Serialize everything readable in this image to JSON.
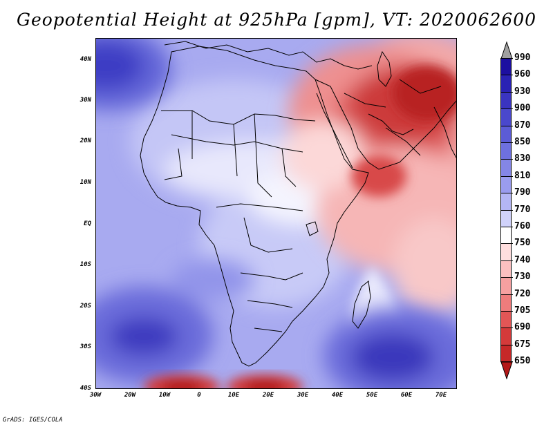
{
  "title": "Geopotential Height at 925hPa [gpm], VT: 2020062600",
  "footer": "GrADS: IGES/COLA",
  "axes": {
    "lat_labels": [
      "40N",
      "30N",
      "20N",
      "10N",
      "EQ",
      "10S",
      "20S",
      "30S",
      "40S"
    ],
    "lon_labels": [
      "30W",
      "20W",
      "10W",
      "0",
      "10E",
      "20E",
      "30E",
      "40E",
      "50E",
      "60E",
      "70E"
    ]
  },
  "colorbar": {
    "levels": [
      "990",
      "960",
      "930",
      "900",
      "870",
      "850",
      "830",
      "810",
      "790",
      "770",
      "760",
      "750",
      "740",
      "730",
      "720",
      "705",
      "690",
      "675",
      "650"
    ],
    "colors": [
      "#a0a0a0",
      "#1c0fa0",
      "#2a22b4",
      "#3a34c0",
      "#4a48cc",
      "#5c5cd6",
      "#6e70de",
      "#8486e6",
      "#9a9cee",
      "#b4b6f4",
      "#d0d2fa",
      "#ffffff",
      "#ffdede",
      "#fcc0c0",
      "#f6a0a0",
      "#ee7c7c",
      "#e25656",
      "#d43a3a",
      "#c62828",
      "#b41818"
    ]
  },
  "chart_data": {
    "type": "heatmap",
    "title": "Geopotential Height at 925hPa [gpm], VT: 2020062600",
    "variable": "Geopotential Height at 925hPa",
    "units": "gpm",
    "valid_time": "2020062600",
    "lon_range": [
      -30,
      75
    ],
    "lat_range": [
      -40,
      45
    ],
    "contour_levels": [
      650,
      675,
      690,
      705,
      720,
      730,
      740,
      750,
      760,
      770,
      790,
      810,
      830,
      850,
      870,
      900,
      930,
      960,
      990
    ]
  }
}
